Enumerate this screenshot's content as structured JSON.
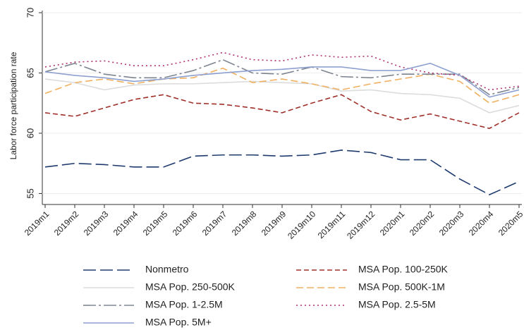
{
  "chart_data": {
    "type": "line",
    "y_label": "Labor force participation rate",
    "x": [
      "2019m1",
      "2019m2",
      "2019m3",
      "2019m4",
      "2019m5",
      "2019m6",
      "2019m7",
      "2019m8",
      "2019m9",
      "2019m10",
      "2019m11",
      "2019m12",
      "2020m1",
      "2020m2",
      "2020m3",
      "2020m4",
      "2020m5"
    ],
    "ylim": [
      54.5,
      70
    ],
    "yticks": [
      55,
      60,
      65,
      70
    ],
    "grid": true,
    "series": [
      {
        "name": "Nonmetro",
        "color": "#1f3b6e",
        "dash": "18,6",
        "values": [
          57.2,
          57.5,
          57.4,
          57.2,
          57.2,
          58.1,
          58.2,
          58.2,
          58.1,
          58.2,
          58.6,
          58.4,
          57.8,
          57.8,
          56.2,
          54.9,
          56.0
        ]
      },
      {
        "name": "MSA Pop. 100-250K",
        "color": "#a0302a",
        "dash": "7,4",
        "values": [
          61.7,
          61.4,
          62.1,
          62.8,
          63.2,
          62.5,
          62.4,
          62.1,
          61.7,
          62.5,
          63.2,
          61.8,
          61.1,
          61.6,
          61.0,
          60.4,
          61.7
        ]
      },
      {
        "name": "MSA Pop. 250-500K",
        "color": "#dcdcdc",
        "dash": "none",
        "values": [
          64.5,
          64.2,
          63.6,
          64.0,
          64.1,
          64.1,
          64.2,
          64.3,
          64.2,
          64.1,
          63.5,
          63.6,
          63.3,
          63.2,
          62.9,
          61.7,
          62.3
        ]
      },
      {
        "name": "MSA Pop. 500K-1M",
        "color": "#f0b060",
        "dash": "10,5",
        "values": [
          63.3,
          64.2,
          64.5,
          64.1,
          64.5,
          64.6,
          65.4,
          64.2,
          64.5,
          64.1,
          63.6,
          64.1,
          64.5,
          64.9,
          64.3,
          62.5,
          63.2
        ]
      },
      {
        "name": "MSA Pop. 1-2.5M",
        "color": "#7d8590",
        "dash": "18,4,3,4",
        "values": [
          65.1,
          65.8,
          64.9,
          64.6,
          64.6,
          65.2,
          66.1,
          65.0,
          64.9,
          65.5,
          64.7,
          64.6,
          64.9,
          64.9,
          64.9,
          63.2,
          63.8
        ]
      },
      {
        "name": "MSA Pop. 2.5-5M",
        "color": "#b03070",
        "dash": "2,4",
        "values": [
          65.5,
          65.9,
          66.0,
          65.6,
          65.6,
          66.1,
          66.7,
          66.1,
          66.0,
          66.5,
          66.3,
          66.4,
          65.5,
          65.0,
          64.8,
          63.6,
          63.9
        ]
      },
      {
        "name": "MSA Pop. 5M+",
        "color": "#8da0d0",
        "dash": "none",
        "values": [
          65.1,
          64.8,
          64.6,
          64.3,
          64.5,
          64.8,
          65.0,
          65.2,
          65.3,
          65.5,
          65.5,
          65.2,
          65.2,
          65.8,
          64.8,
          63.0,
          63.6
        ]
      }
    ]
  }
}
